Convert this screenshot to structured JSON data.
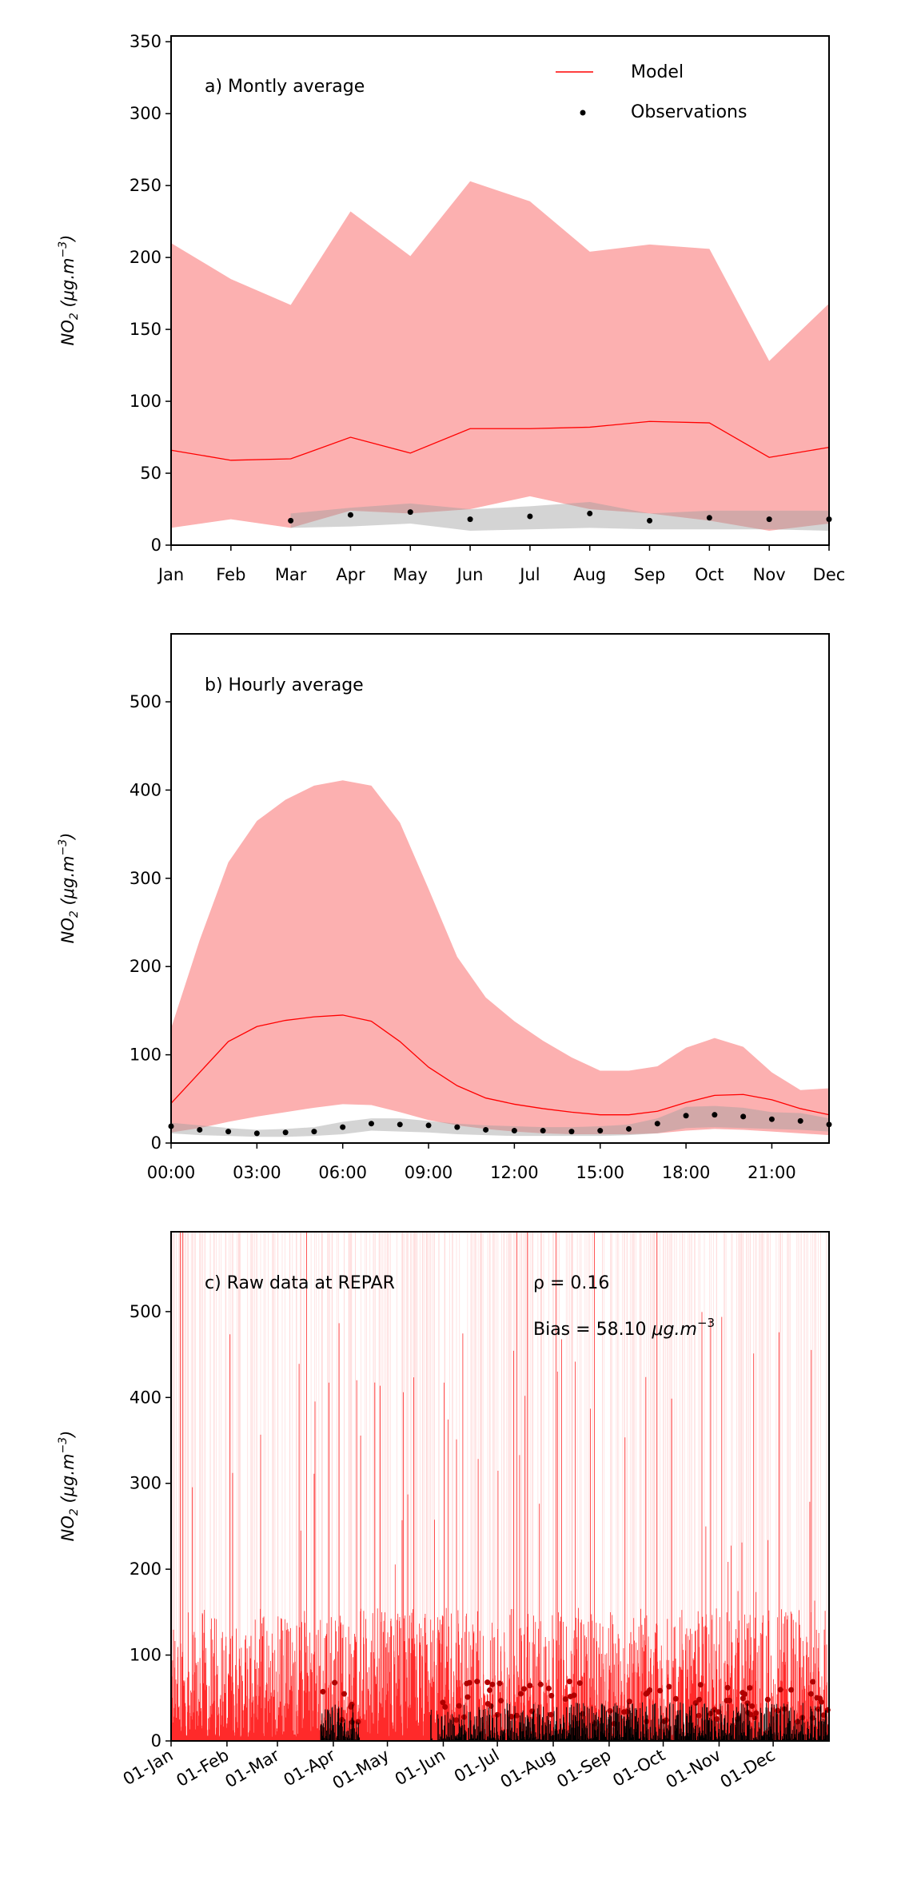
{
  "chart_data": [
    {
      "type": "line",
      "title": "a) Montly average",
      "xlabel": "",
      "ylabel": "NO",
      "ylabel_sub": "2",
      "ylabel_units": " (μg.m",
      "ylabel_sup": "−3",
      "ylabel_close": ")",
      "ylim": [
        0,
        354
      ],
      "yticks": [
        0,
        50,
        100,
        150,
        200,
        250,
        300,
        350
      ],
      "categories": [
        "Jan",
        "Feb",
        "Mar",
        "Apr",
        "May",
        "Jun",
        "Jul",
        "Aug",
        "Sep",
        "Oct",
        "Nov",
        "Dec"
      ],
      "legend": {
        "placement": "top-right",
        "entries": [
          "Model",
          "Observations"
        ]
      },
      "series": [
        {
          "name": "Model",
          "mean": [
            66,
            59,
            60,
            75,
            64,
            81,
            81,
            82,
            86,
            85,
            61,
            68
          ],
          "upper": [
            210,
            185,
            167,
            232,
            201,
            253,
            239,
            204,
            209,
            206,
            128,
            168
          ],
          "lower": [
            12,
            18,
            12,
            24,
            22,
            25,
            34,
            25,
            22,
            17,
            10,
            15
          ]
        },
        {
          "name": "Observations",
          "mean": [
            null,
            null,
            17,
            21,
            23,
            18,
            20,
            22,
            17,
            19,
            18,
            18
          ],
          "upper": [
            null,
            null,
            22,
            26,
            29,
            25,
            27,
            30,
            22,
            24,
            24,
            24
          ],
          "lower": [
            null,
            null,
            12,
            13,
            15,
            10,
            11,
            12,
            11,
            11,
            11,
            10
          ]
        }
      ]
    },
    {
      "type": "line",
      "title": "b) Hourly average",
      "ylabel": "NO",
      "ylabel_sub": "2",
      "ylabel_units": " (μg.m",
      "ylabel_sup": "−3",
      "ylabel_close": ")",
      "ylim": [
        0,
        577
      ],
      "yticks": [
        0,
        100,
        200,
        300,
        400,
        500
      ],
      "x": [
        0,
        1,
        2,
        3,
        4,
        5,
        6,
        7,
        8,
        9,
        10,
        11,
        12,
        13,
        14,
        15,
        16,
        17,
        18,
        19,
        20,
        21,
        22,
        23
      ],
      "xticks": [
        0,
        3,
        6,
        9,
        12,
        15,
        18,
        21
      ],
      "xtick_labels": [
        "00:00",
        "03:00",
        "06:00",
        "09:00",
        "12:00",
        "15:00",
        "18:00",
        "21:00"
      ],
      "series": [
        {
          "name": "Model",
          "mean": [
            45,
            80,
            115,
            132,
            139,
            143,
            145,
            138,
            115,
            86,
            65,
            51,
            44,
            39,
            35,
            32,
            32,
            36,
            46,
            54,
            55,
            49,
            39,
            32
          ],
          "upper": [
            130,
            230,
            318,
            365,
            389,
            405,
            411,
            405,
            363,
            288,
            211,
            165,
            138,
            116,
            97,
            82,
            82,
            87,
            108,
            119,
            109,
            80,
            60,
            62
          ],
          "lower": [
            12,
            17,
            24,
            30,
            35,
            40,
            44,
            43,
            35,
            26,
            20,
            16,
            13,
            11,
            10,
            10,
            10,
            11,
            14,
            16,
            15,
            13,
            11,
            9
          ]
        },
        {
          "name": "Observations",
          "mean": [
            19,
            15,
            13,
            11,
            12,
            13,
            18,
            22,
            21,
            20,
            18,
            15,
            14,
            14,
            13,
            14,
            16,
            22,
            31,
            32,
            30,
            27,
            25,
            21
          ],
          "upper": [
            23,
            20,
            17,
            15,
            16,
            18,
            24,
            28,
            28,
            25,
            22,
            20,
            19,
            18,
            18,
            19,
            21,
            28,
            41,
            42,
            40,
            35,
            34,
            28
          ],
          "lower": [
            11,
            9,
            8,
            7,
            7,
            8,
            10,
            14,
            13,
            12,
            10,
            9,
            8,
            8,
            8,
            8,
            9,
            11,
            17,
            18,
            17,
            16,
            15,
            13
          ]
        }
      ]
    },
    {
      "type": "line",
      "title": "c) Raw data at REPAR",
      "stat_rho": "ρ = 0.16",
      "stat_bias": "Bias = 58.10 ",
      "stat_bias_units": "μg.m",
      "stat_bias_sup": "−3",
      "ylabel": "NO",
      "ylabel_sub": "2",
      "ylabel_units": " (μg.m",
      "ylabel_sup": "−3",
      "ylabel_close": ")",
      "ylim": [
        0,
        593
      ],
      "yticks": [
        0,
        100,
        200,
        300,
        400,
        500
      ],
      "xlim_days": [
        0,
        365
      ],
      "xtick_days": [
        0,
        31,
        59,
        90,
        120,
        151,
        181,
        212,
        243,
        273,
        304,
        334
      ],
      "xtick_labels": [
        "01-Jan",
        "01-Feb",
        "01-Mar",
        "01-Apr",
        "01-May",
        "01-Jun",
        "01-Jul",
        "01-Aug",
        "01-Sep",
        "01-Oct",
        "01-Nov",
        "01-Dec"
      ],
      "series": [
        {
          "name": "Model",
          "resolution": "hourly",
          "typical_range": [
            5,
            150
          ],
          "peaks_up_to": 593
        },
        {
          "name": "Observations",
          "resolution": "hourly",
          "periods_days": [
            [
              83,
              105
            ],
            [
              144,
              145
            ],
            [
              148,
              365
            ]
          ],
          "typical_range": [
            0,
            70
          ]
        }
      ]
    }
  ],
  "colors": {
    "model": "#ff0000",
    "model_band": "#fcb0b0",
    "obs": "#000000",
    "obs_band": "rgba(160,160,160,0.45)"
  }
}
